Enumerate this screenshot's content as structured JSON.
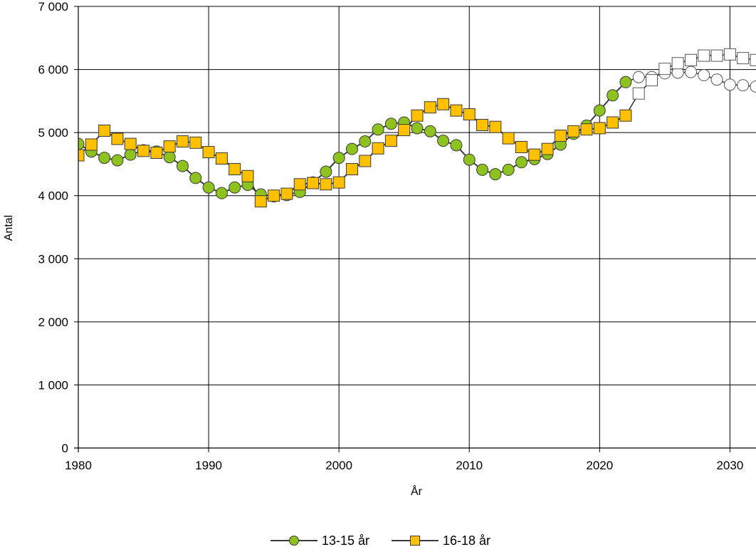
{
  "chart_data": {
    "type": "line",
    "xlabel": "År",
    "ylabel": "Antal",
    "xlim": [
      1980,
      2032
    ],
    "ylim": [
      0,
      7000
    ],
    "x_ticks": [
      1980,
      1990,
      2000,
      2010,
      2020,
      2030
    ],
    "x_tick_labels": [
      "1980",
      "1990",
      "2000",
      "2010",
      "2020",
      "2030"
    ],
    "y_ticks": [
      0,
      1000,
      2000,
      3000,
      4000,
      5000,
      6000,
      7000
    ],
    "y_tick_labels": [
      "0",
      "1 000",
      "2 000",
      "3 000",
      "4 000",
      "5 000",
      "6 000",
      "7 000"
    ],
    "grid": true,
    "legend_position": "bottom-center",
    "projection_start_year": 2023,
    "x": [
      1980,
      1981,
      1982,
      1983,
      1984,
      1985,
      1986,
      1987,
      1988,
      1989,
      1990,
      1991,
      1992,
      1993,
      1994,
      1995,
      1996,
      1997,
      1998,
      1999,
      2000,
      2001,
      2002,
      2003,
      2004,
      2005,
      2006,
      2007,
      2008,
      2009,
      2010,
      2011,
      2012,
      2013,
      2014,
      2015,
      2016,
      2017,
      2018,
      2019,
      2020,
      2021,
      2022,
      2023,
      2024,
      2025,
      2026,
      2027,
      2028,
      2029,
      2030,
      2031,
      2032
    ],
    "series": [
      {
        "name": "13-15 år",
        "marker": "circle",
        "color": "#8dc21f",
        "values": [
          4820,
          4700,
          4600,
          4560,
          4650,
          4720,
          4700,
          4610,
          4470,
          4280,
          4130,
          4040,
          4130,
          4170,
          4020,
          3990,
          4010,
          4060,
          4210,
          4380,
          4600,
          4740,
          4860,
          5050,
          5140,
          5160,
          5070,
          5020,
          4870,
          4800,
          4570,
          4410,
          4340,
          4410,
          4530,
          4580,
          4660,
          4810,
          4980,
          5110,
          5350,
          5590,
          5800,
          5880,
          5880,
          5940,
          5950,
          5960,
          5910,
          5840,
          5760,
          5750,
          5730
        ]
      },
      {
        "name": "16-18 år",
        "marker": "square",
        "color": "#ffc000",
        "values": [
          4640,
          4810,
          5030,
          4900,
          4820,
          4710,
          4680,
          4780,
          4860,
          4840,
          4690,
          4590,
          4420,
          4310,
          3910,
          4000,
          4030,
          4180,
          4200,
          4180,
          4210,
          4420,
          4550,
          4750,
          4870,
          5040,
          5270,
          5400,
          5450,
          5350,
          5290,
          5120,
          5090,
          4910,
          4770,
          4650,
          4740,
          4950,
          5020,
          5050,
          5070,
          5160,
          5270,
          5620,
          5830,
          6010,
          6100,
          6150,
          6220,
          6220,
          6240,
          6180,
          6150
        ]
      }
    ]
  }
}
